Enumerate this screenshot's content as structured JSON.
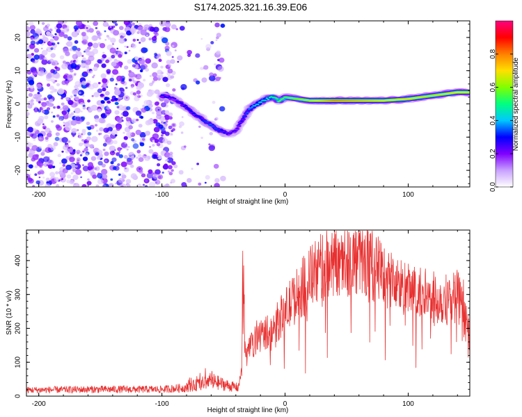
{
  "title": "S174.2025.321.16.39.E06",
  "chart_data": [
    {
      "type": "heatmap",
      "name": "spectrogram",
      "xlabel": "Height of straight line (km)",
      "ylabel": "Frequency (Hz)",
      "xlim": [
        -210,
        150
      ],
      "ylim": [
        -25,
        25
      ],
      "xticks": [
        -200,
        -100,
        0,
        100
      ],
      "xtick_labels": [
        "-200",
        "-100",
        "0",
        "100"
      ],
      "yticks": [
        -20,
        -10,
        0,
        10,
        20
      ],
      "ytick_labels": [
        "-20",
        "-10",
        "0",
        "10",
        "20"
      ],
      "colorbar": {
        "label": "Normalized spectral amplitude",
        "range": [
          0,
          1
        ],
        "ticks": [
          0,
          0.2,
          0.4,
          0.6,
          0.8
        ],
        "tick_labels": [
          "0.0",
          "0.2",
          "0.4",
          "0.6",
          "0.8"
        ],
        "colors": [
          "#ffffff",
          "#c8a0ff",
          "#8000ff",
          "#0000ff",
          "#00c8ff",
          "#00ff80",
          "#80ff00",
          "#ffe000",
          "#ff8000",
          "#ff0000",
          "#ff0080"
        ]
      },
      "ridge": {
        "description": "dominant frequency track",
        "height_km": [
          -100,
          -90,
          -80,
          -70,
          -60,
          -50,
          -45,
          -40,
          -35,
          -30,
          -25,
          -20,
          -15,
          -10,
          -5,
          0,
          10,
          20,
          40,
          60,
          80,
          100,
          120,
          140,
          150
        ],
        "frequency_hz": [
          2.5,
          1.5,
          -1,
          -4,
          -6.5,
          -8.5,
          -9,
          -8,
          -5,
          -2,
          -0.5,
          0.5,
          1.5,
          2,
          1,
          2,
          1.5,
          1,
          1,
          1,
          1,
          1.5,
          2.5,
          3.5,
          3.5
        ],
        "amplitude": [
          0.3,
          0.25,
          0.3,
          0.3,
          0.35,
          0.3,
          0.25,
          0.25,
          0.3,
          0.35,
          0.4,
          0.45,
          0.45,
          0.5,
          0.55,
          0.55,
          0.6,
          0.65,
          0.8,
          0.75,
          0.7,
          0.7,
          0.65,
          0.7,
          0.7
        ]
      },
      "noise_region_km": [
        -210,
        -50
      ]
    },
    {
      "type": "line",
      "name": "snr",
      "xlabel": "Height of straight line (km)",
      "ylabel": "SNR (10 * v/v)",
      "xlim": [
        -210,
        150
      ],
      "ylim": [
        0,
        490
      ],
      "xticks": [
        -200,
        -100,
        0,
        100
      ],
      "xtick_labels": [
        "-200",
        "-100",
        "0",
        "100"
      ],
      "yticks": [
        0,
        100,
        200,
        300,
        400
      ],
      "ytick_labels": [
        "0",
        "100",
        "200",
        "300",
        "400"
      ],
      "color": "#e83030",
      "envelope": {
        "x": [
          -210,
          -150,
          -100,
          -80,
          -60,
          -45,
          -38,
          -35,
          -30,
          -25,
          -20,
          -10,
          0,
          10,
          20,
          30,
          40,
          50,
          60,
          70,
          80,
          90,
          100,
          110,
          120,
          130,
          140,
          150
        ],
        "y": [
          18,
          20,
          20,
          25,
          45,
          30,
          25,
          80,
          130,
          160,
          180,
          200,
          250,
          300,
          350,
          380,
          400,
          405,
          400,
          390,
          360,
          330,
          310,
          300,
          290,
          285,
          300,
          180
        ]
      }
    }
  ]
}
